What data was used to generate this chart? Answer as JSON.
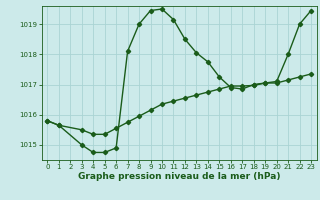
{
  "title": "Graphe pression niveau de la mer (hPa)",
  "bg_color": "#cceaea",
  "grid_color": "#aad4d4",
  "line_color": "#1a5c1a",
  "xlim": [
    -0.5,
    23.5
  ],
  "ylim": [
    1014.5,
    1019.6
  ],
  "yticks": [
    1015,
    1016,
    1017,
    1018,
    1019
  ],
  "xticks": [
    0,
    1,
    2,
    3,
    4,
    5,
    6,
    7,
    8,
    9,
    10,
    11,
    12,
    13,
    14,
    15,
    16,
    17,
    18,
    19,
    20,
    21,
    22,
    23
  ],
  "series1_x": [
    0,
    1,
    3,
    4,
    5,
    6,
    7,
    8,
    9,
    10,
    11,
    12,
    13,
    14,
    15,
    16,
    17,
    18,
    19,
    20,
    21,
    22,
    23
  ],
  "series1_y": [
    1015.8,
    1015.65,
    1015.0,
    1014.75,
    1014.75,
    1014.9,
    1018.1,
    1019.0,
    1019.45,
    1019.5,
    1019.15,
    1018.5,
    1018.05,
    1017.75,
    1017.25,
    1016.9,
    1016.85,
    1017.0,
    1017.05,
    1017.1,
    1018.0,
    1019.0,
    1019.45
  ],
  "series2_x": [
    0,
    1,
    3,
    4,
    5,
    6,
    7,
    8,
    9,
    10,
    11,
    12,
    13,
    14,
    15,
    16,
    17,
    18,
    19,
    20,
    21,
    22,
    23
  ],
  "series2_y": [
    1015.8,
    1015.65,
    1015.5,
    1015.35,
    1015.35,
    1015.55,
    1015.75,
    1015.95,
    1016.15,
    1016.35,
    1016.45,
    1016.55,
    1016.65,
    1016.75,
    1016.85,
    1016.95,
    1016.95,
    1016.97,
    1017.05,
    1017.05,
    1017.15,
    1017.25,
    1017.35
  ],
  "markersize": 2.2,
  "linewidth": 1.0,
  "title_fontsize": 6.5,
  "tick_fontsize": 5.0
}
